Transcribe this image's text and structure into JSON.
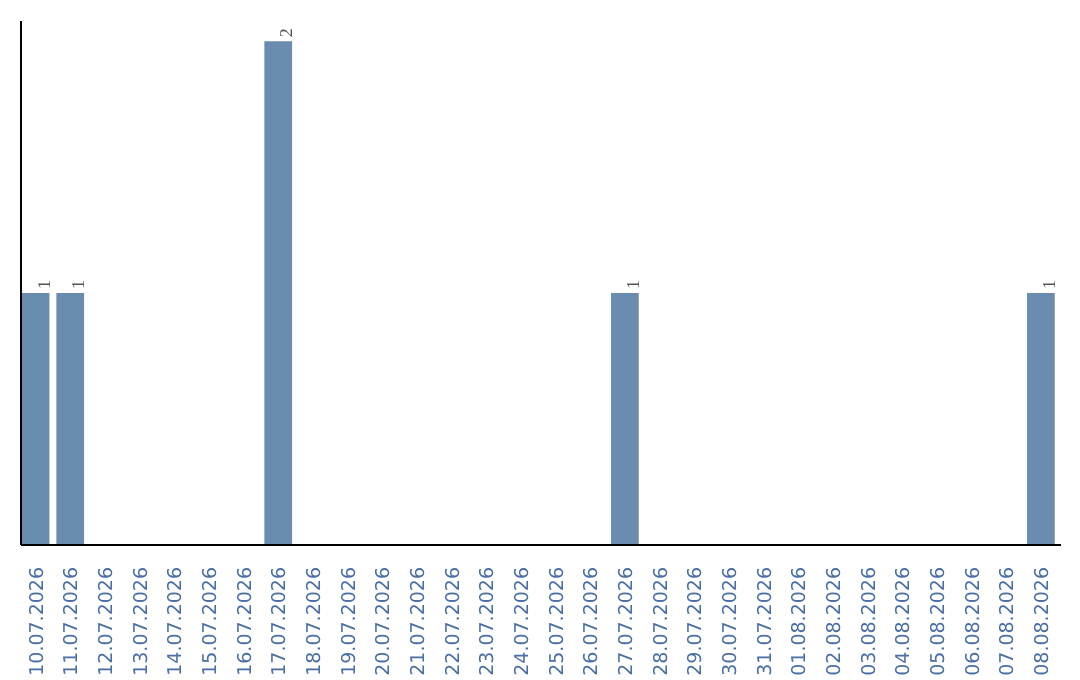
{
  "chart_data": {
    "type": "bar",
    "categories": [
      "10.07.2026",
      "11.07.2026",
      "12.07.2026",
      "13.07.2026",
      "14.07.2026",
      "15.07.2026",
      "16.07.2026",
      "17.07.2026",
      "18.07.2026",
      "19.07.2026",
      "20.07.2026",
      "21.07.2026",
      "22.07.2026",
      "23.07.2026",
      "24.07.2026",
      "25.07.2026",
      "26.07.2026",
      "27.07.2026",
      "28.07.2026",
      "29.07.2026",
      "30.07.2026",
      "31.07.2026",
      "01.08.2026",
      "02.08.2026",
      "03.08.2026",
      "04.08.2026",
      "05.08.2026",
      "06.08.2026",
      "07.08.2026",
      "08.08.2026"
    ],
    "values": [
      1,
      1,
      0,
      0,
      0,
      0,
      0,
      2,
      0,
      0,
      0,
      0,
      0,
      0,
      0,
      0,
      0,
      1,
      0,
      0,
      0,
      0,
      0,
      0,
      0,
      0,
      0,
      0,
      0,
      1
    ],
    "value_labels": [
      "1",
      "1",
      null,
      null,
      null,
      null,
      null,
      "2",
      null,
      null,
      null,
      null,
      null,
      null,
      null,
      null,
      null,
      "1",
      null,
      null,
      null,
      null,
      null,
      null,
      null,
      null,
      null,
      null,
      null,
      "1"
    ],
    "color": "#6a8cae",
    "grid": false
  }
}
